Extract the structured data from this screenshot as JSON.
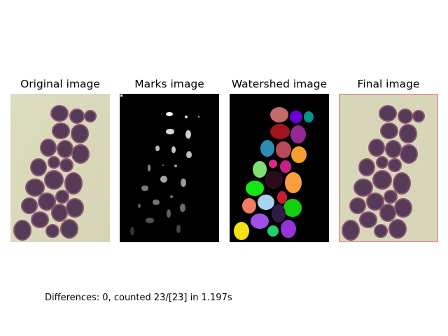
{
  "panels": [
    {
      "title": "Original image"
    },
    {
      "title": "Marks image"
    },
    {
      "title": "Watershed image"
    },
    {
      "title": "Final image"
    }
  ],
  "caption": "Differences: 0, counted 23/[23] in 1.197s",
  "colors": {
    "background_light": "#d8d6b8",
    "cell": "#4b3050",
    "cell_edge": "#8a4a6c",
    "marks_bg": "#000000",
    "final_border": "#e07070"
  }
}
